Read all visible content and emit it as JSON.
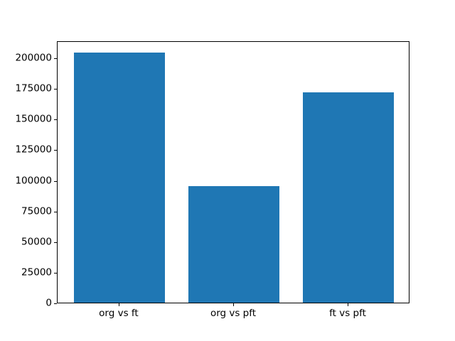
{
  "chart_data": {
    "type": "bar",
    "categories": [
      "org vs ft",
      "org vs pft",
      "ft vs pft"
    ],
    "values": [
      204000,
      95400,
      171700
    ],
    "title": "",
    "xlabel": "",
    "ylabel": "",
    "ylim": [
      0,
      214000
    ],
    "y_ticks": [
      0,
      25000,
      50000,
      75000,
      100000,
      125000,
      150000,
      175000,
      200000
    ],
    "bar_color": "#1f77b4",
    "axis_color": "#000000",
    "background_color": "#ffffff",
    "bar_width_fraction": 0.8,
    "grid": false,
    "legend": "none"
  }
}
